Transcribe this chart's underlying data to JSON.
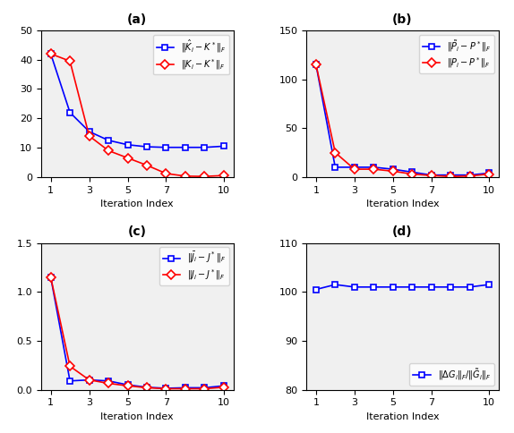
{
  "iterations": [
    1,
    2,
    3,
    4,
    5,
    6,
    7,
    8,
    9,
    10
  ],
  "panel_a": {
    "title": "(a)",
    "blue": [
      42,
      22,
      15.5,
      12.5,
      11,
      10.3,
      10.1,
      10.1,
      10.1,
      10.5
    ],
    "red": [
      42,
      39.5,
      14,
      9,
      6.5,
      4,
      1.2,
      0.3,
      0.2,
      0.5
    ],
    "ylim": [
      0,
      50
    ],
    "yticks": [
      0,
      10,
      20,
      30,
      40,
      50
    ],
    "legend_blue": "$\\|\\hat{K}_i - K^*\\|_F$",
    "legend_red": "$\\|K_i - K^*\\|_F$",
    "xlabel": "Iteration Index"
  },
  "panel_b": {
    "title": "(b)",
    "blue": [
      115,
      10,
      10,
      10,
      8,
      5,
      2,
      2,
      2,
      4
    ],
    "red": [
      115,
      25,
      8,
      8,
      6,
      3,
      1.5,
      0.5,
      1,
      3
    ],
    "ylim": [
      0,
      150
    ],
    "yticks": [
      0,
      50,
      100,
      150
    ],
    "legend_blue": "$\\|\\tilde{P}_i - P^*\\|_F$",
    "legend_red": "$\\|P_i - P^*\\|_F$",
    "xlabel": "Iteration Index"
  },
  "panel_c": {
    "title": "(c)",
    "blue": [
      1.15,
      0.09,
      0.1,
      0.09,
      0.05,
      0.025,
      0.015,
      0.02,
      0.02,
      0.04
    ],
    "red": [
      1.15,
      0.24,
      0.1,
      0.065,
      0.04,
      0.02,
      0.01,
      0.01,
      0.01,
      0.025
    ],
    "ylim": [
      0,
      1.5
    ],
    "yticks": [
      0,
      0.5,
      1.0,
      1.5
    ],
    "legend_blue": "$\\|\\bar{J}_i - J^*\\|_F$",
    "legend_red": "$\\|J_i - J^*\\|_F$",
    "xlabel": "Iteration Index"
  },
  "panel_d": {
    "title": "(d)",
    "blue": [
      100.5,
      101.5,
      101,
      101,
      101,
      101,
      101,
      101,
      101,
      101.5
    ],
    "ylim": [
      80,
      110
    ],
    "yticks": [
      80,
      90,
      100,
      110
    ],
    "legend_blue": "$\\|\\Delta G_i\\|_F / \\|\\tilde{G}_i\\|_F$",
    "xlabel": "Iteration Index"
  },
  "xticks": [
    1,
    3,
    5,
    7,
    10
  ],
  "blue_color": "#0000FF",
  "red_color": "#FF0000",
  "marker_blue": "s",
  "marker_red": "D"
}
